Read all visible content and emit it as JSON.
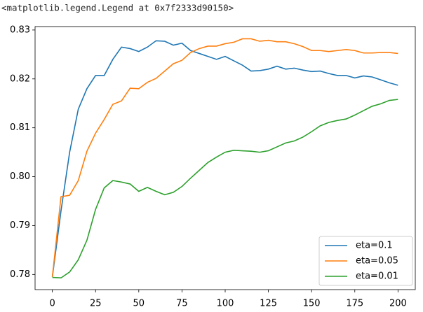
{
  "output_text": "<matplotlib.legend.Legend at 0x7f2333d90150>",
  "chart_data": {
    "type": "line",
    "x": [
      0,
      5,
      10,
      15,
      20,
      25,
      30,
      35,
      40,
      45,
      50,
      55,
      60,
      65,
      70,
      75,
      80,
      85,
      90,
      95,
      100,
      105,
      110,
      115,
      120,
      125,
      130,
      135,
      140,
      145,
      150,
      155,
      160,
      165,
      170,
      175,
      180,
      185,
      190,
      195,
      200
    ],
    "series": [
      {
        "name": "eta=0.1",
        "color": "#1f77b4",
        "values": [
          0.7795,
          0.793,
          0.805,
          0.8138,
          0.818,
          0.8207,
          0.8207,
          0.824,
          0.8265,
          0.8262,
          0.8256,
          0.8265,
          0.8278,
          0.8277,
          0.8269,
          0.8273,
          0.8258,
          0.8252,
          0.8246,
          0.824,
          0.8246,
          0.8237,
          0.8228,
          0.8216,
          0.8217,
          0.822,
          0.8226,
          0.822,
          0.8222,
          0.8218,
          0.8215,
          0.8216,
          0.8211,
          0.8207,
          0.8207,
          0.8202,
          0.8206,
          0.8204,
          0.8198,
          0.8192,
          0.8187
        ]
      },
      {
        "name": "eta=0.05",
        "color": "#ff7f0e",
        "values": [
          0.7795,
          0.7959,
          0.7962,
          0.7992,
          0.8052,
          0.8089,
          0.8117,
          0.8148,
          0.8155,
          0.8181,
          0.818,
          0.8193,
          0.8201,
          0.8216,
          0.8231,
          0.8238,
          0.8254,
          0.8262,
          0.8267,
          0.8267,
          0.8272,
          0.8275,
          0.8282,
          0.8282,
          0.8277,
          0.8279,
          0.8276,
          0.8276,
          0.8272,
          0.8266,
          0.8258,
          0.8258,
          0.8256,
          0.8258,
          0.826,
          0.8258,
          0.8253,
          0.8253,
          0.8254,
          0.8254,
          0.8252
        ]
      },
      {
        "name": "eta=0.01",
        "color": "#2ca02c",
        "values": [
          0.7794,
          0.7793,
          0.7805,
          0.783,
          0.787,
          0.7933,
          0.7977,
          0.7992,
          0.7989,
          0.7985,
          0.797,
          0.7978,
          0.797,
          0.7963,
          0.7968,
          0.798,
          0.7997,
          0.8013,
          0.8029,
          0.804,
          0.805,
          0.8054,
          0.8053,
          0.8052,
          0.805,
          0.8053,
          0.8061,
          0.8069,
          0.8073,
          0.8081,
          0.8092,
          0.8104,
          0.8111,
          0.8115,
          0.8118,
          0.8126,
          0.8135,
          0.8144,
          0.8149,
          0.8156,
          0.8158
        ]
      }
    ],
    "xlim": [
      -10,
      210
    ],
    "xticks": [
      0,
      25,
      50,
      75,
      100,
      125,
      150,
      175,
      200
    ],
    "ylim": [
      0.7769,
      0.8307
    ],
    "yticks": [
      0.78,
      0.79,
      {
        "value": 0.8,
        "label": "0.80"
      },
      0.81,
      0.82,
      0.83
    ],
    "grid": false,
    "legend": "lower right"
  }
}
